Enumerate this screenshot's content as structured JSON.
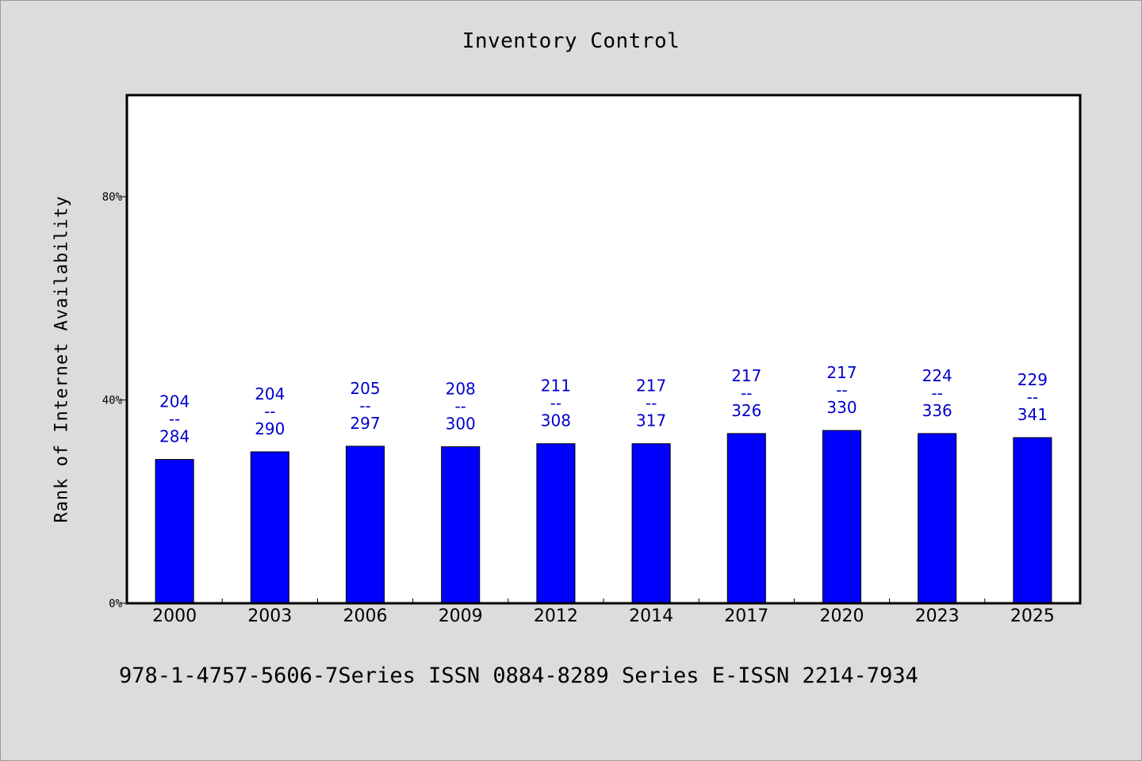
{
  "chart_data": {
    "type": "bar",
    "title": "Inventory Control",
    "ylabel": "Rank of Internet Availability",
    "xlabel": "",
    "categories": [
      "2000",
      "2003",
      "2006",
      "2009",
      "2012",
      "2014",
      "2017",
      "2020",
      "2023",
      "2025"
    ],
    "values": [
      28.3,
      29.8,
      30.9,
      30.8,
      31.4,
      31.4,
      33.4,
      34.0,
      33.4,
      32.6
    ],
    "labels": [
      [
        "204",
        "--",
        "284"
      ],
      [
        "204",
        "--",
        "290"
      ],
      [
        "205",
        "--",
        "297"
      ],
      [
        "208",
        "--",
        "300"
      ],
      [
        "211",
        "--",
        "308"
      ],
      [
        "217",
        "--",
        "317"
      ],
      [
        "217",
        "--",
        "326"
      ],
      [
        "217",
        "--",
        "330"
      ],
      [
        "224",
        "--",
        "336"
      ],
      [
        "229",
        "--",
        "341"
      ]
    ],
    "yticks": [
      0,
      40,
      80
    ],
    "ytick_labels": [
      "0%",
      "40%",
      "80%"
    ],
    "ylim": [
      0,
      100
    ],
    "grid": false,
    "bar_color": "#0000ff",
    "label_color": "#0000cc"
  },
  "footer": "978-1-4757-5606-7Series ISSN 0884-8289 Series E-ISSN 2214-7934",
  "colors": {
    "background": "#dcdcdc",
    "plot_background": "#ffffff",
    "bar": "#0000ff",
    "label": "#0000cc"
  }
}
